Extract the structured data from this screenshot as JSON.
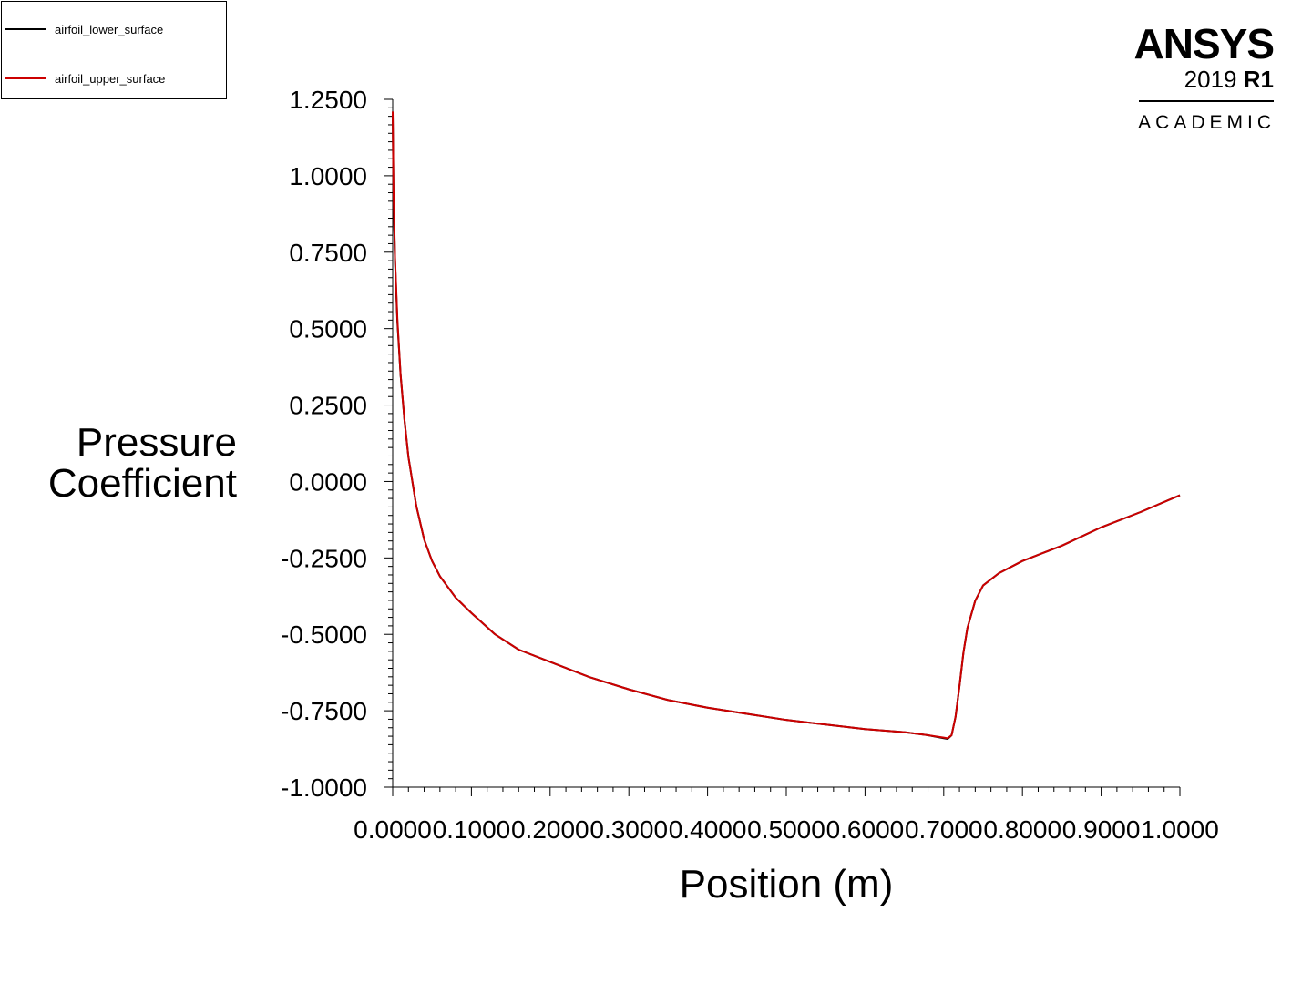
{
  "legend": {
    "items": [
      {
        "label": "airfoil_lower_surface",
        "color": "#000000"
      },
      {
        "label": "airfoil_upper_surface",
        "color": "#cc0000"
      }
    ]
  },
  "logo": {
    "name": "ANSYS",
    "version_year": "2019",
    "version_release": "R1",
    "edition": "ACADEMIC"
  },
  "chart_data": {
    "type": "line",
    "xlabel": "Position (m)",
    "ylabel_lines": [
      "Pressure",
      "Coefficient"
    ],
    "xlim": [
      0,
      1
    ],
    "ylim": [
      -1,
      1.25
    ],
    "x_ticks": [
      "0.0000",
      "0.1000",
      "0.2000",
      "0.3000",
      "0.4000",
      "0.5000",
      "0.6000",
      "0.7000",
      "0.8000",
      "0.9000",
      "1.0000"
    ],
    "y_ticks": [
      "1.2500",
      "1.0000",
      "0.7500",
      "0.5000",
      "0.2500",
      "0.0000",
      "-0.2500",
      "-0.5000",
      "-0.7500",
      "-1.0000"
    ],
    "grid": false,
    "legend_position": "top-left",
    "series": [
      {
        "name": "airfoil_lower_surface",
        "color": "#000000",
        "x": [
          0,
          0.001,
          0.003,
          0.006,
          0.01,
          0.015,
          0.02,
          0.03,
          0.04,
          0.05,
          0.06,
          0.08,
          0.1,
          0.13,
          0.16,
          0.2,
          0.25,
          0.3,
          0.35,
          0.4,
          0.45,
          0.5,
          0.55,
          0.6,
          0.65,
          0.68,
          0.7,
          0.705,
          0.71,
          0.715,
          0.72,
          0.725,
          0.73,
          0.74,
          0.75,
          0.77,
          0.8,
          0.85,
          0.9,
          0.95,
          1.0
        ],
        "y": [
          1.2,
          0.95,
          0.72,
          0.52,
          0.35,
          0.2,
          0.08,
          -0.08,
          -0.19,
          -0.26,
          -0.31,
          -0.38,
          -0.43,
          -0.5,
          -0.55,
          -0.59,
          -0.64,
          -0.68,
          -0.715,
          -0.74,
          -0.76,
          -0.78,
          -0.795,
          -0.81,
          -0.82,
          -0.83,
          -0.84,
          -0.842,
          -0.83,
          -0.77,
          -0.67,
          -0.56,
          -0.48,
          -0.39,
          -0.34,
          -0.3,
          -0.26,
          -0.21,
          -0.15,
          -0.1,
          -0.045
        ]
      },
      {
        "name": "airfoil_upper_surface",
        "color": "#cc0000",
        "x": [
          0,
          0.001,
          0.003,
          0.006,
          0.01,
          0.015,
          0.02,
          0.03,
          0.04,
          0.05,
          0.06,
          0.08,
          0.1,
          0.13,
          0.16,
          0.2,
          0.25,
          0.3,
          0.35,
          0.4,
          0.45,
          0.5,
          0.55,
          0.6,
          0.65,
          0.68,
          0.7,
          0.705,
          0.71,
          0.715,
          0.72,
          0.725,
          0.73,
          0.74,
          0.75,
          0.77,
          0.8,
          0.85,
          0.9,
          0.95,
          1.0
        ],
        "y": [
          1.21,
          0.96,
          0.73,
          0.53,
          0.35,
          0.2,
          0.08,
          -0.08,
          -0.19,
          -0.26,
          -0.31,
          -0.38,
          -0.43,
          -0.5,
          -0.55,
          -0.59,
          -0.64,
          -0.68,
          -0.715,
          -0.74,
          -0.76,
          -0.78,
          -0.795,
          -0.81,
          -0.82,
          -0.83,
          -0.838,
          -0.84,
          -0.83,
          -0.77,
          -0.67,
          -0.56,
          -0.48,
          -0.39,
          -0.34,
          -0.3,
          -0.26,
          -0.21,
          -0.15,
          -0.1,
          -0.045
        ]
      }
    ]
  }
}
